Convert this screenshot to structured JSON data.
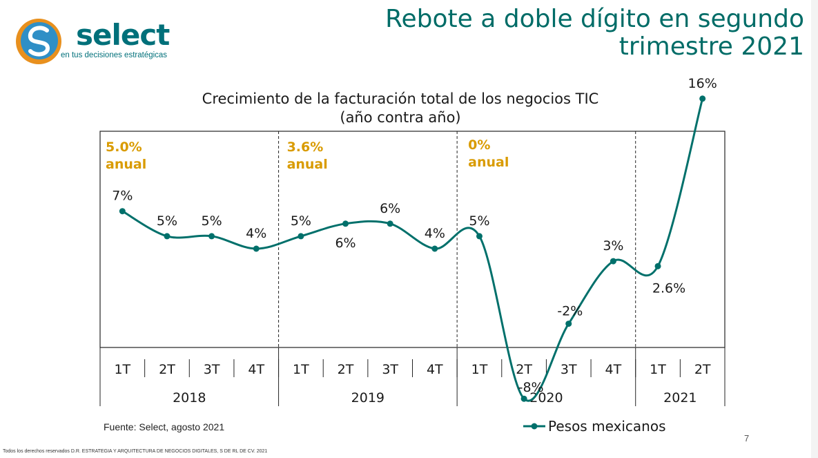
{
  "slide": {
    "title_line1": "Rebote a doble dígito en segundo",
    "title_line2": "trimestre 2021",
    "page_number": "7",
    "footer": "Todos los derechos reservados D.R. ESTRATEGIA Y ARQUITECTURA DE NEGOCIOS DIGITALES, S DE RL DE CV. 2021",
    "source": "Fuente: Select, agosto 2021"
  },
  "logo": {
    "word": "select",
    "tagline": "en tus decisiones estratégicas"
  },
  "colors": {
    "line": "#00706b",
    "annual": "#d99b00",
    "title": "#006c67",
    "logo_blue": "#2f8fc6",
    "logo_orange": "#e8901e"
  },
  "chart_data": {
    "type": "line",
    "title": "Crecimiento de la facturación total de los negocios TIC",
    "subtitle": "(año contra año)",
    "categories": [
      "1T",
      "2T",
      "3T",
      "4T",
      "1T",
      "2T",
      "3T",
      "4T",
      "1T",
      "2T",
      "3T",
      "4T",
      "1T",
      "2T"
    ],
    "years": [
      {
        "label": "2018",
        "annual_value": "5.0%",
        "annual_word": "anual"
      },
      {
        "label": "2019",
        "annual_value": "3.6%",
        "annual_word": "anual"
      },
      {
        "label": "2020",
        "annual_value": "0%",
        "annual_word": "anual"
      },
      {
        "label": "2021"
      }
    ],
    "series": [
      {
        "name": "Pesos mexicanos",
        "values": [
          7,
          5,
          5,
          4,
          5,
          6,
          6,
          4,
          5,
          -8,
          -2,
          3,
          2.6,
          16
        ],
        "labels": [
          "7%",
          "5%",
          "5%",
          "4%",
          "5%",
          "6%",
          "6%",
          "4%",
          "5%",
          "-8%",
          "-2%",
          "3%",
          "2.6%",
          "16%"
        ]
      }
    ],
    "grid": false,
    "legend_position": "bottom-right"
  }
}
